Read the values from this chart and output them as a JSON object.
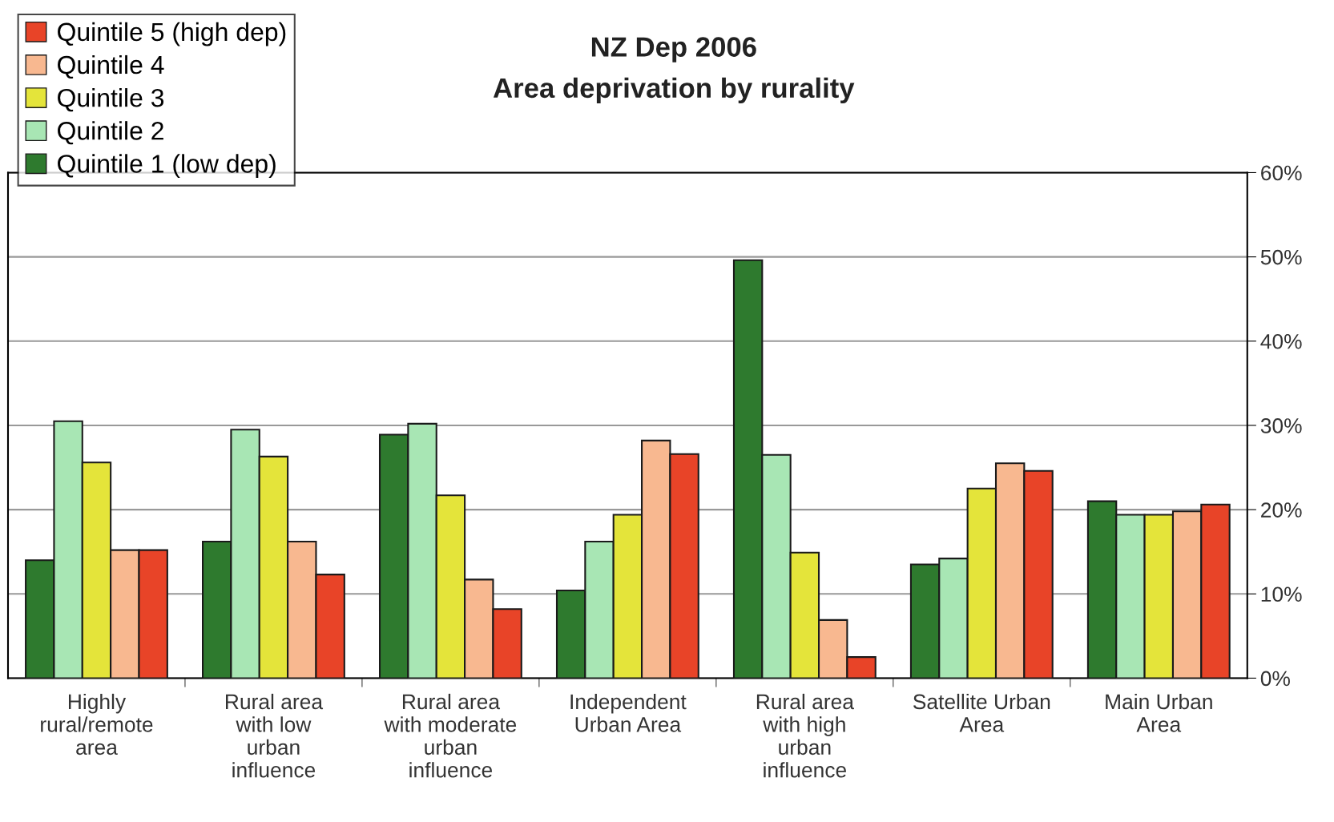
{
  "chart_data": {
    "type": "bar",
    "title": "NZ Dep 2006",
    "subtitle": "Area deprivation by rurality",
    "categories": [
      "Highly\nrural/remote\narea",
      "Rural area\nwith low\nurban\ninfluence",
      "Rural area\nwith moderate\nurban\ninfluence",
      "Independent\nUrban Area",
      "Rural area\nwith high\nurban\ninfluence",
      "Satellite Urban\nArea",
      "Main Urban\nArea"
    ],
    "series": [
      {
        "name": "Quintile 1 (low dep)",
        "color": "#2e7a2e",
        "values": [
          14.0,
          16.2,
          28.9,
          10.4,
          49.6,
          13.5,
          21.0
        ]
      },
      {
        "name": "Quintile 2",
        "color": "#a8e6b4",
        "values": [
          30.5,
          29.5,
          30.2,
          16.2,
          26.5,
          14.2,
          19.4
        ]
      },
      {
        "name": "Quintile 3",
        "color": "#e4e43a",
        "values": [
          25.6,
          26.3,
          21.7,
          19.4,
          14.9,
          22.5,
          19.4
        ]
      },
      {
        "name": "Quintile 4",
        "color": "#f8b890",
        "values": [
          15.2,
          16.2,
          11.7,
          28.2,
          6.9,
          25.5,
          19.8
        ]
      },
      {
        "name": "Quintile 5 (high dep)",
        "color": "#e84428",
        "values": [
          15.2,
          12.3,
          8.2,
          26.6,
          2.5,
          24.6,
          20.6
        ]
      }
    ],
    "ylim": [
      0,
      60
    ],
    "yticks": [
      {
        "value": 0,
        "label": "0%"
      },
      {
        "value": 10,
        "label": "10%"
      },
      {
        "value": 20,
        "label": "20%"
      },
      {
        "value": 30,
        "label": "30%"
      },
      {
        "value": 40,
        "label": "40%"
      },
      {
        "value": 50,
        "label": "50%"
      },
      {
        "value": 60,
        "label": "60%"
      }
    ],
    "grid": "y",
    "legend": "top left"
  }
}
